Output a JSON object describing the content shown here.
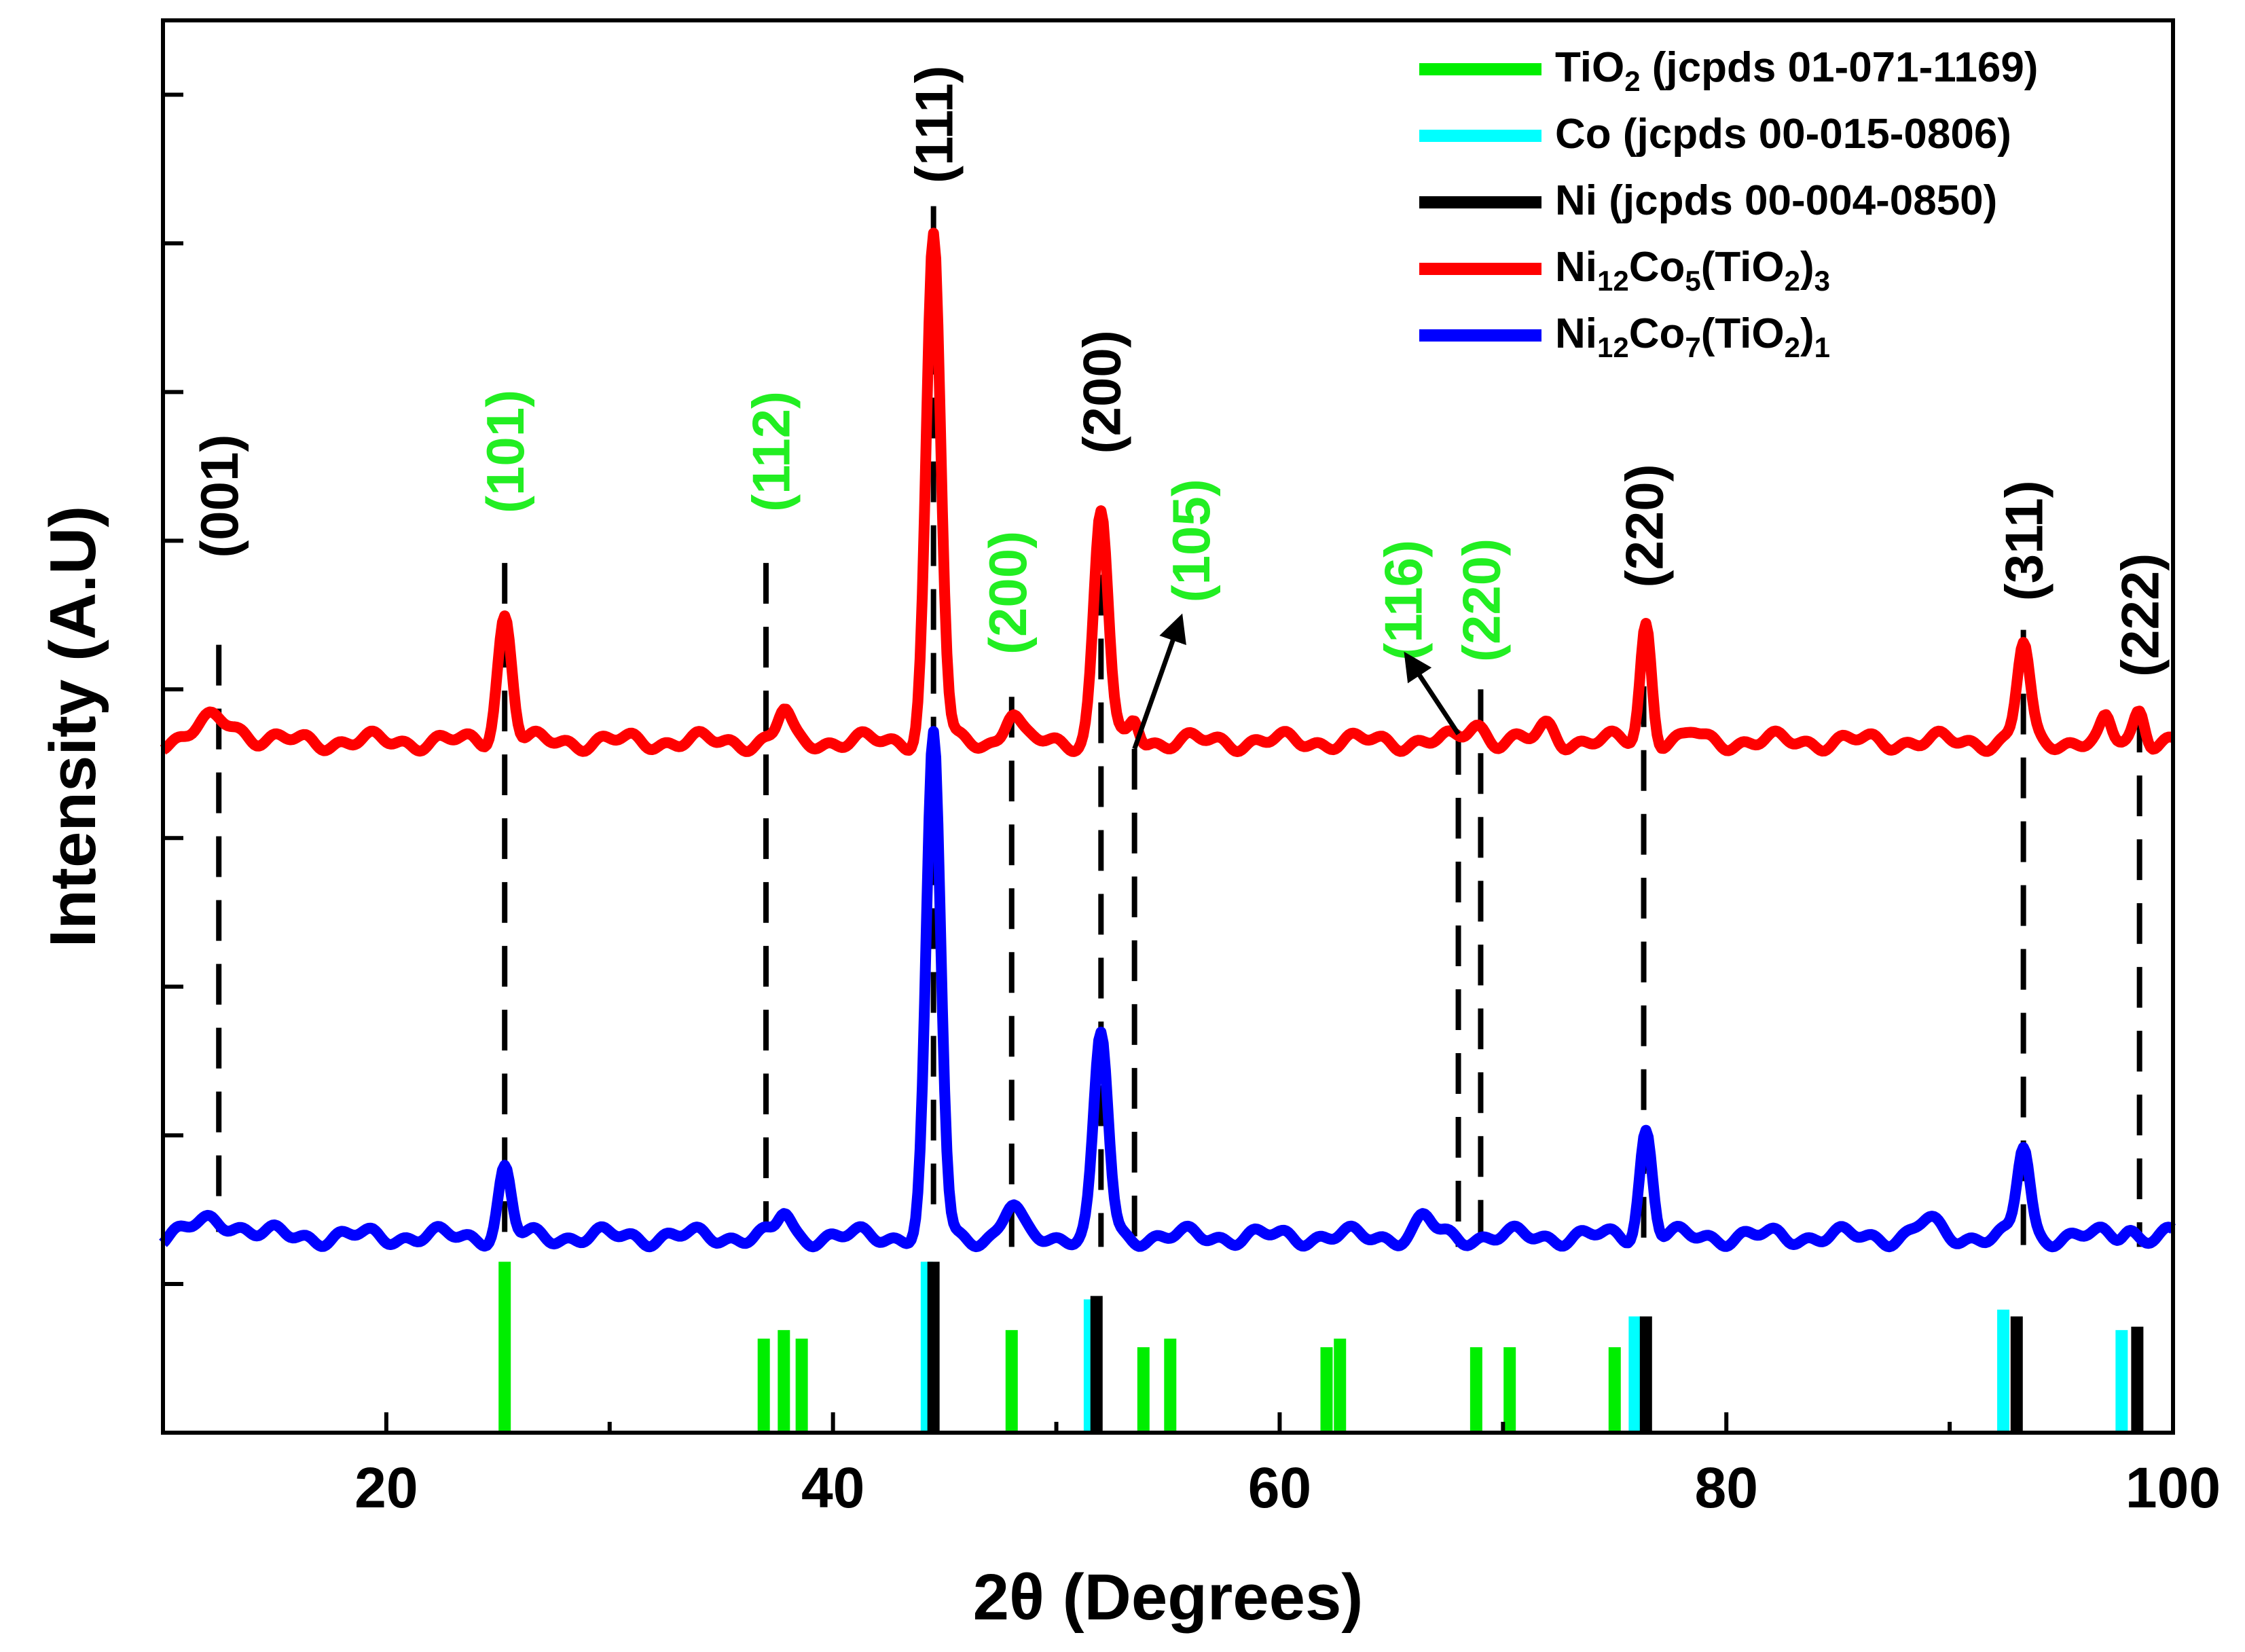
{
  "chart_data": {
    "type": "line",
    "title": "",
    "xlabel": "2θ (Degrees)",
    "ylabel": "Intensity (A.U)",
    "xlim": [
      10,
      100
    ],
    "ylim": [
      0,
      9.5
    ],
    "x_ticks": [
      20,
      40,
      60,
      80,
      100
    ],
    "colors": {
      "tio2": "#00ee00",
      "co": "#00ffff",
      "ni": "#000000",
      "red": "#ff0000",
      "blue": "#0000ff",
      "hkl_ni": "#000000",
      "hkl_tio2": "#22ee22"
    },
    "legend": [
      {
        "key": "tio2",
        "color": "#00ee00",
        "label": "TiO",
        "sub": "2",
        "rest": " (jcpds 01-071-1169)"
      },
      {
        "key": "co",
        "color": "#00ffff",
        "label": "Co (jcpds 00-015-0806)"
      },
      {
        "key": "ni",
        "color": "#000000",
        "label": "Ni (jcpds 00-004-0850)"
      },
      {
        "key": "red",
        "color": "#ff0000",
        "parts": [
          [
            "Ni",
            ""
          ],
          [
            "12",
            "sub"
          ],
          [
            "Co",
            ""
          ],
          [
            "5",
            "sub"
          ],
          [
            "(TiO",
            ""
          ],
          [
            "2",
            "sub"
          ],
          [
            ")",
            ""
          ],
          [
            "3",
            "sub"
          ]
        ]
      },
      {
        "key": "blue",
        "color": "#0000ff",
        "parts": [
          [
            "Ni",
            ""
          ],
          [
            "12",
            "sub"
          ],
          [
            "Co",
            ""
          ],
          [
            "7",
            "sub"
          ],
          [
            "(TiO",
            ""
          ],
          [
            "2",
            "sub"
          ],
          [
            ")",
            ""
          ],
          [
            "1",
            "sub"
          ]
        ]
      }
    ],
    "series": [
      {
        "name": "Ni12Co5(TiO2)3",
        "color": "#ff0000",
        "baseline": 4.65,
        "peaks": [
          [
            12.5,
            0.14,
            1.4
          ],
          [
            25.3,
            0.85,
            0.45
          ],
          [
            37.8,
            0.2,
            0.4
          ],
          [
            44.5,
            3.4,
            0.45
          ],
          [
            48.0,
            0.2,
            0.45
          ],
          [
            52.0,
            1.55,
            0.45
          ],
          [
            53.5,
            0.15,
            0.3
          ],
          [
            76.4,
            0.8,
            0.35
          ],
          [
            93.3,
            0.65,
            0.4
          ],
          [
            97.0,
            0.12,
            0.3
          ],
          [
            98.5,
            0.22,
            0.35
          ],
          [
            68.8,
            0.12,
            0.6
          ],
          [
            72.0,
            0.1,
            0.5
          ],
          [
            78.5,
            0.05,
            0.4
          ]
        ]
      },
      {
        "name": "Ni12Co7(TiO2)1",
        "color": "#0000ff",
        "baseline": 1.32,
        "peaks": [
          [
            12.5,
            0.1,
            1.6
          ],
          [
            25.3,
            0.45,
            0.4
          ],
          [
            37.8,
            0.15,
            0.4
          ],
          [
            44.5,
            3.35,
            0.45
          ],
          [
            48.0,
            0.2,
            0.5
          ],
          [
            52.0,
            1.35,
            0.45
          ],
          [
            66.5,
            0.12,
            0.5
          ],
          [
            76.4,
            0.72,
            0.4
          ],
          [
            93.3,
            0.6,
            0.4
          ],
          [
            89.0,
            0.1,
            0.6
          ],
          [
            98.0,
            0.06,
            0.4
          ]
        ]
      }
    ],
    "reference_lines": {
      "tio2": [
        [
          25.3,
          1.0
        ],
        [
          36.9,
          0.55
        ],
        [
          37.8,
          0.6
        ],
        [
          38.6,
          0.55
        ],
        [
          48.0,
          0.6
        ],
        [
          53.9,
          0.5
        ],
        [
          55.1,
          0.55
        ],
        [
          62.1,
          0.5
        ],
        [
          62.7,
          0.55
        ],
        [
          68.8,
          0.5
        ],
        [
          70.3,
          0.5
        ],
        [
          75.0,
          0.5
        ]
      ],
      "co": [
        [
          44.2,
          1.0
        ],
        [
          51.5,
          0.78
        ],
        [
          75.9,
          0.68
        ],
        [
          92.4,
          0.72
        ],
        [
          97.7,
          0.6
        ]
      ],
      "ni": [
        [
          44.5,
          1.0
        ],
        [
          51.8,
          0.8
        ],
        [
          76.4,
          0.68
        ],
        [
          93.0,
          0.68
        ],
        [
          98.4,
          0.62
        ]
      ]
    },
    "hkl_labels": [
      {
        "text": "(001)",
        "x": 12.5,
        "y": 6.3,
        "color_key": "hkl_ni",
        "line": [
          12.5,
          5.3,
          1.35
        ]
      },
      {
        "text": "(101)",
        "x": 25.3,
        "y": 6.6,
        "color_key": "hkl_tio2",
        "line": [
          25.3,
          5.85,
          1.35
        ]
      },
      {
        "text": "(112)",
        "x": 37.2,
        "y": 6.6,
        "color_key": "hkl_tio2",
        "line": [
          37.0,
          5.85,
          1.35
        ]
      },
      {
        "text": "(111)",
        "x": 44.5,
        "y": 8.8,
        "color_key": "hkl_ni",
        "line": [
          44.5,
          8.25,
          1.5
        ]
      },
      {
        "text": "(200)",
        "x": 47.8,
        "y": 5.65,
        "color_key": "hkl_tio2",
        "line": [
          48.0,
          4.95,
          1.25
        ]
      },
      {
        "text": "(200)",
        "x": 52.0,
        "y": 7.0,
        "color_key": "hkl_ni",
        "line": [
          52.0,
          6.2,
          1.25
        ]
      },
      {
        "text": "(105)",
        "x": 56.0,
        "y": 6.0,
        "color_key": "hkl_tio2",
        "line": [
          53.5,
          4.6,
          1.25
        ]
      },
      {
        "text": "(116)",
        "x": 65.5,
        "y": 5.6,
        "color_key": "hkl_tio2",
        "line": [
          68.0,
          4.7,
          1.25
        ]
      },
      {
        "text": "(220)",
        "x": 69.0,
        "y": 5.6,
        "color_key": "hkl_tio2",
        "line": [
          69.0,
          5.0,
          1.25
        ]
      },
      {
        "text": "(220)",
        "x": 76.3,
        "y": 6.1,
        "color_key": "hkl_ni",
        "line": [
          76.3,
          5.45,
          1.25
        ]
      },
      {
        "text": "(311)",
        "x": 93.3,
        "y": 6.0,
        "color_key": "hkl_ni",
        "line": [
          93.3,
          5.4,
          1.25
        ]
      },
      {
        "text": "(222)",
        "x": 98.5,
        "y": 5.5,
        "color_key": "hkl_ni",
        "line": [
          98.5,
          4.85,
          1.25
        ]
      }
    ],
    "arrows": [
      {
        "from": [
          53.5,
          4.6
        ],
        "to": [
          55.5,
          5.45
        ]
      },
      {
        "from": [
          68.0,
          4.7
        ],
        "to": [
          65.8,
          5.2
        ]
      }
    ]
  }
}
